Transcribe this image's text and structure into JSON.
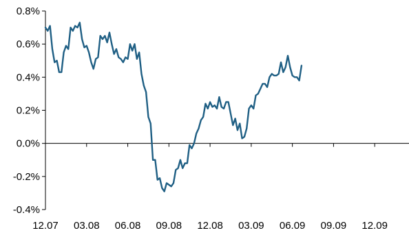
{
  "chart_data": {
    "type": "line",
    "title": "",
    "xlabel": "",
    "ylabel": "",
    "ylim": [
      -0.4,
      0.8
    ],
    "yticks": [
      {
        "value": -0.4,
        "label": "-0.4%"
      },
      {
        "value": -0.2,
        "label": "-0.2%"
      },
      {
        "value": 0.0,
        "label": "0.0%"
      },
      {
        "value": 0.2,
        "label": "0.2%"
      },
      {
        "value": 0.4,
        "label": "0.4%"
      },
      {
        "value": 0.6,
        "label": "0.6%"
      },
      {
        "value": 0.8,
        "label": "0.8%"
      }
    ],
    "xlim": [
      0,
      159
    ],
    "xticks": [
      {
        "value": 0,
        "label": "12.07"
      },
      {
        "value": 18,
        "label": "03.08"
      },
      {
        "value": 36,
        "label": "06.08"
      },
      {
        "value": 54,
        "label": "09.08"
      },
      {
        "value": 72,
        "label": "12.08"
      },
      {
        "value": 90,
        "label": "03.09"
      },
      {
        "value": 108,
        "label": "06.09"
      },
      {
        "value": 126,
        "label": "09.09"
      },
      {
        "value": 144,
        "label": "12.09"
      }
    ],
    "grid": false,
    "legend": "none",
    "colors": {
      "line": "#1f5f84",
      "axis": "#000000"
    },
    "series": [
      {
        "values": [
          0.7,
          0.68,
          0.71,
          0.57,
          0.49,
          0.5,
          0.43,
          0.43,
          0.55,
          0.59,
          0.57,
          0.7,
          0.68,
          0.71,
          0.7,
          0.73,
          0.63,
          0.58,
          0.59,
          0.55,
          0.49,
          0.45,
          0.51,
          0.52,
          0.65,
          0.63,
          0.65,
          0.61,
          0.67,
          0.6,
          0.54,
          0.57,
          0.52,
          0.51,
          0.49,
          0.52,
          0.51,
          0.6,
          0.56,
          0.6,
          0.51,
          0.55,
          0.42,
          0.35,
          0.31,
          0.16,
          0.12,
          -0.1,
          -0.1,
          -0.22,
          -0.21,
          -0.27,
          -0.29,
          -0.24,
          -0.25,
          -0.26,
          -0.24,
          -0.16,
          -0.15,
          -0.1,
          -0.15,
          -0.12,
          -0.12,
          -0.01,
          -0.03,
          0.0,
          0.06,
          0.09,
          0.14,
          0.16,
          0.24,
          0.21,
          0.25,
          0.22,
          0.23,
          0.21,
          0.28,
          0.22,
          0.21,
          0.25,
          0.25,
          0.18,
          0.11,
          0.15,
          0.08,
          0.12,
          0.03,
          0.04,
          0.09,
          0.21,
          0.23,
          0.21,
          0.29,
          0.3,
          0.33,
          0.36,
          0.36,
          0.34,
          0.4,
          0.42,
          0.41,
          0.41,
          0.42,
          0.49,
          0.43,
          0.46,
          0.53,
          0.46,
          0.41,
          0.4,
          0.4,
          0.38,
          0.47
        ]
      }
    ]
  }
}
